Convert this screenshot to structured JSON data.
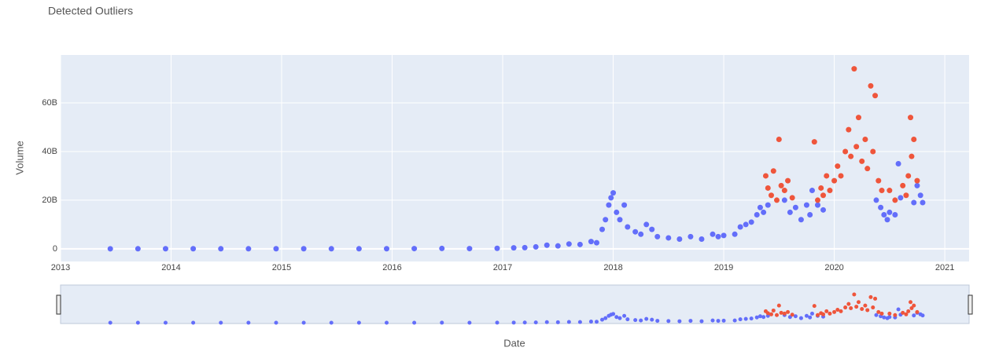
{
  "chart_data": {
    "type": "scatter",
    "title": "Detected Outliers",
    "xlabel": "Date",
    "ylabel": "Volume",
    "xlim": [
      2013,
      2021.22
    ],
    "xticks": [
      2013,
      2014,
      2015,
      2016,
      2017,
      2018,
      2019,
      2020,
      2021
    ],
    "ylim": [
      -5.2,
      79.7
    ],
    "yticks": [
      0,
      {
        "value": 20,
        "label": "20B"
      },
      {
        "value": 40,
        "label": "40B"
      },
      {
        "value": 60,
        "label": "60B"
      }
    ],
    "grid": true,
    "range_slider": true,
    "series": [
      {
        "color": "#636efa",
        "x": [
          2013.45,
          2013.7,
          2013.95,
          2014.2,
          2014.45,
          2014.7,
          2014.95,
          2015.2,
          2015.45,
          2015.7,
          2015.95,
          2016.2,
          2016.45,
          2016.7,
          2016.95,
          2017.1,
          2017.2,
          2017.3,
          2017.4,
          2017.5,
          2017.6,
          2017.7,
          2017.8,
          2017.85,
          2017.9,
          2017.93,
          2017.96,
          2017.98,
          2018.0,
          2018.03,
          2018.06,
          2018.1,
          2018.13,
          2018.2,
          2018.25,
          2018.3,
          2018.35,
          2018.4,
          2018.5,
          2018.6,
          2018.7,
          2018.8,
          2018.9,
          2018.95,
          2019.0,
          2019.1,
          2019.15,
          2019.2,
          2019.25,
          2019.3,
          2019.33,
          2019.36,
          2019.4,
          2019.55,
          2019.6,
          2019.65,
          2019.7,
          2019.75,
          2019.78,
          2019.8,
          2019.85,
          2019.9,
          2020.38,
          2020.42,
          2020.45,
          2020.48,
          2020.5,
          2020.55,
          2020.58,
          2020.6,
          2020.72,
          2020.75,
          2020.78,
          2020.8
        ],
        "values": [
          0.02,
          0.03,
          0.05,
          0.05,
          0.03,
          0.03,
          0.04,
          0.04,
          0.03,
          0.03,
          0.05,
          0.1,
          0.15,
          0.1,
          0.2,
          0.4,
          0.5,
          0.8,
          1.5,
          1.2,
          2.0,
          1.8,
          3.0,
          2.5,
          8,
          12,
          18,
          21,
          23,
          15,
          12,
          18,
          9,
          7,
          6,
          10,
          8,
          5,
          4.5,
          4,
          5,
          4,
          6,
          5,
          5.5,
          6,
          9,
          10,
          11,
          14,
          17,
          15,
          18,
          20,
          15,
          17,
          12,
          18,
          14,
          24,
          18,
          16,
          20,
          17,
          14,
          12,
          15,
          14,
          35,
          21,
          19,
          26,
          22,
          19
        ]
      },
      {
        "color": "#ef553b",
        "x": [
          2019.38,
          2019.4,
          2019.43,
          2019.45,
          2019.48,
          2019.5,
          2019.52,
          2019.55,
          2019.58,
          2019.62,
          2019.82,
          2019.85,
          2019.88,
          2019.9,
          2019.93,
          2019.96,
          2020.0,
          2020.03,
          2020.06,
          2020.1,
          2020.13,
          2020.15,
          2020.18,
          2020.2,
          2020.22,
          2020.25,
          2020.28,
          2020.3,
          2020.33,
          2020.35,
          2020.37,
          2020.4,
          2020.43,
          2020.5,
          2020.55,
          2020.62,
          2020.65,
          2020.67,
          2020.69,
          2020.7,
          2020.72,
          2020.75
        ],
        "values": [
          30,
          25,
          22,
          32,
          20,
          45,
          26,
          24,
          28,
          21,
          44,
          20,
          25,
          22,
          30,
          24,
          28,
          34,
          30,
          40,
          49,
          38,
          74,
          42,
          54,
          36,
          45,
          33,
          67,
          40,
          63,
          28,
          24,
          24,
          20,
          26,
          22,
          30,
          54,
          38,
          45,
          28
        ]
      }
    ]
  }
}
